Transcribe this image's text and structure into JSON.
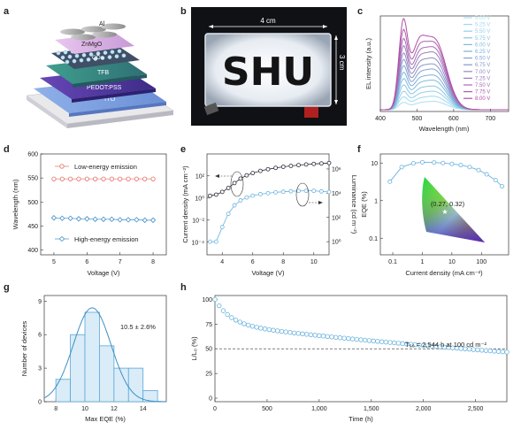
{
  "panels": {
    "a": {
      "label": "a",
      "layers": [
        "Al",
        "ZnMgO",
        "QDs",
        "TFB",
        "PEDOT:PSS",
        "ITO"
      ]
    },
    "b": {
      "label": "b",
      "photo_text": "SHU",
      "width_label": "4 cm",
      "height_label": "3 cm"
    }
  },
  "chart_data": [
    {
      "panel": "c",
      "type": "line",
      "ylabel": "EL intensity (a.u.)",
      "xlabel": "Wavelength (nm)",
      "xlim": [
        400,
        750
      ],
      "xticks": [
        400,
        500,
        600,
        700
      ],
      "legend_position": "top-right",
      "series": [
        {
          "name": "5.00 V",
          "color": "#a9dff2",
          "peak1": 0.08,
          "peak2": 0.1
        },
        {
          "name": "5.25 V",
          "color": "#9fd8ee",
          "peak1": 0.14,
          "peak2": 0.16
        },
        {
          "name": "5.50 V",
          "color": "#93cfe9",
          "peak1": 0.2,
          "peak2": 0.22
        },
        {
          "name": "5.75 V",
          "color": "#88c5e4",
          "peak1": 0.27,
          "peak2": 0.28
        },
        {
          "name": "6.00 V",
          "color": "#7fbbdf",
          "peak1": 0.34,
          "peak2": 0.35
        },
        {
          "name": "6.25 V",
          "color": "#7fb0d9",
          "peak1": 0.41,
          "peak2": 0.41
        },
        {
          "name": "6.50 V",
          "color": "#84a3d2",
          "peak1": 0.48,
          "peak2": 0.48
        },
        {
          "name": "6.75 V",
          "color": "#8b96cb",
          "peak1": 0.55,
          "peak2": 0.54
        },
        {
          "name": "7.00 V",
          "color": "#9488c4",
          "peak1": 0.62,
          "peak2": 0.61
        },
        {
          "name": "7.25 V",
          "color": "#9c7abd",
          "peak1": 0.7,
          "peak2": 0.68
        },
        {
          "name": "7.50 V",
          "color": "#a56cb6",
          "peak1": 0.78,
          "peak2": 0.74
        },
        {
          "name": "7.75 V",
          "color": "#ad5eae",
          "peak1": 0.88,
          "peak2": 0.8
        },
        {
          "name": "8.00 V",
          "color": "#b04fa6",
          "peak1": 1.0,
          "peak2": 0.85
        }
      ]
    },
    {
      "panel": "d",
      "type": "line",
      "ylabel": "Wavelength (nm)",
      "xlabel": "Voltage (V)",
      "xlim": [
        4.6,
        8.4
      ],
      "ylim": [
        390,
        600
      ],
      "xticks": [
        5,
        6,
        7,
        8
      ],
      "yticks": [
        400,
        450,
        500,
        550,
        600
      ],
      "x": [
        5.0,
        5.25,
        5.5,
        5.75,
        6.0,
        6.25,
        6.5,
        6.75,
        7.0,
        7.25,
        7.5,
        7.75,
        8.0
      ],
      "series": [
        {
          "name": "Low-energy emission",
          "color": "#e36f63",
          "marker": "circle",
          "values": [
            548,
            548,
            548,
            548,
            548,
            548,
            548,
            548,
            548,
            548,
            548,
            548,
            548
          ]
        },
        {
          "name": "High-energy emission",
          "color": "#3d8fc6",
          "marker": "diamond",
          "values": [
            467,
            466,
            466,
            465,
            465,
            464,
            464,
            464,
            463,
            463,
            463,
            462,
            462
          ]
        }
      ]
    },
    {
      "panel": "e",
      "type": "line",
      "xlabel": "Voltage (V)",
      "ylabel": "Current density (mA cm⁻²)",
      "ylabel_right": "Luminance (cd m⁻²)",
      "xlim": [
        3,
        11
      ],
      "xticks": [
        4,
        6,
        8,
        10
      ],
      "yticks_left": [
        "10²",
        "10⁰",
        "10⁻²",
        "10⁻⁴"
      ],
      "yticks_right": [
        "10⁶",
        "10⁴",
        "10²",
        "10⁰"
      ],
      "x": [
        3.2,
        3.6,
        4.0,
        4.4,
        4.8,
        5.2,
        5.6,
        6.0,
        6.5,
        7.0,
        7.5,
        8.0,
        8.5,
        9.0,
        9.5,
        10.0,
        10.5,
        11.0
      ],
      "series": [
        {
          "name": "Current density",
          "color": "#2a2a3a",
          "axis": "left",
          "log10_values": [
            0.2,
            0.3,
            0.55,
            0.9,
            1.35,
            1.75,
            2.05,
            2.25,
            2.45,
            2.6,
            2.72,
            2.82,
            2.9,
            2.97,
            3.03,
            3.08,
            3.12,
            3.16
          ]
        },
        {
          "name": "Luminance",
          "color": "#6ab3de",
          "axis": "right",
          "log10_values": [
            0.0,
            0.0,
            1.2,
            2.3,
            3.0,
            3.4,
            3.65,
            3.8,
            3.92,
            4.0,
            4.07,
            4.12,
            4.16,
            4.19,
            4.2,
            4.2,
            4.15,
            4.1
          ]
        }
      ]
    },
    {
      "panel": "f",
      "type": "scatter",
      "ylabel": "EQE (%)",
      "xlabel": "Current density (mA cm⁻²)",
      "xticks": [
        "0.1",
        "1",
        "10",
        "100"
      ],
      "yticks": [
        "10",
        "1",
        "0.1"
      ],
      "cie_label": "(0.27, 0.32)",
      "x": [
        0.08,
        0.2,
        0.5,
        1.0,
        2.5,
        5,
        10,
        20,
        40,
        80,
        150,
        300,
        500
      ],
      "values": [
        3.2,
        7.8,
        9.8,
        10.5,
        10.3,
        10.0,
        9.5,
        8.8,
        7.8,
        6.5,
        5.0,
        3.5,
        2.4
      ]
    },
    {
      "panel": "g",
      "type": "bar",
      "ylabel": "Number of devices",
      "xlabel": "Max EQE (%)",
      "annotation": "10.5 ± 2.6%",
      "xticks": [
        8,
        10,
        12,
        14
      ],
      "yticks": [
        0,
        3,
        6,
        9
      ],
      "bin_width": 1,
      "categories": [
        8.5,
        9.5,
        10.5,
        11.5,
        12.5,
        13.5,
        14.5
      ],
      "values": [
        2,
        6,
        8,
        5,
        3,
        3,
        1
      ]
    },
    {
      "panel": "h",
      "type": "scatter",
      "ylabel": "L/L₀ (%)",
      "xlabel": "Time (h)",
      "xlim": [
        0,
        2800
      ],
      "ylim": [
        0,
        100
      ],
      "xticks": [
        "0",
        "500",
        "1,000",
        "1,500",
        "2,000",
        "2,500"
      ],
      "yticks": [
        0,
        25,
        50,
        75,
        100
      ],
      "annotation": "T₅₀ = 2,544 h at 100 cd m⁻²",
      "reference_line": 50,
      "lifetime_T50": 2544
    }
  ]
}
